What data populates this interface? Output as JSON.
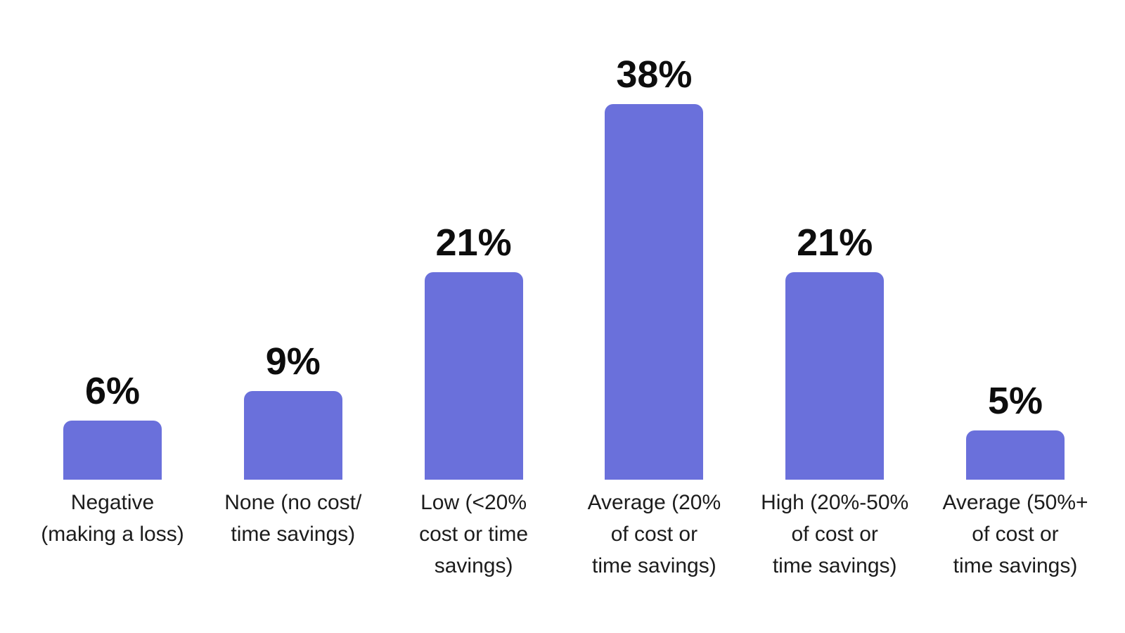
{
  "chart_data": {
    "type": "bar",
    "title": "",
    "xlabel": "",
    "ylabel": "",
    "categories": [
      "Negative (making a loss)",
      "None (no cost/ time savings)",
      "Low (<20% cost or time savings)",
      "Average (20% of cost or time savings)",
      "High (20%-50% of cost or time savings)",
      "Average (50%+ of cost or time savings)"
    ],
    "category_lines": [
      [
        "Negative",
        "(making a loss)"
      ],
      [
        "None (no cost/",
        "time savings)"
      ],
      [
        "Low (<20%",
        "cost or time",
        "savings)"
      ],
      [
        "Average (20%",
        "of cost or",
        "time savings)"
      ],
      [
        "High (20%-50%",
        "of cost or",
        "time savings)"
      ],
      [
        "Average (50%+",
        "of cost or",
        "time savings)"
      ]
    ],
    "values": [
      6,
      9,
      21,
      38,
      21,
      5
    ],
    "value_labels": [
      "6%",
      "9%",
      "21%",
      "38%",
      "21%",
      "5%"
    ],
    "ylim": [
      0,
      40
    ],
    "grid": false,
    "legend": false,
    "axes_visible": false,
    "bar_color": "#6A70DB",
    "value_label_color": "#0d0d0d",
    "category_label_color": "#1c1c1c",
    "background_color": "#ffffff"
  }
}
